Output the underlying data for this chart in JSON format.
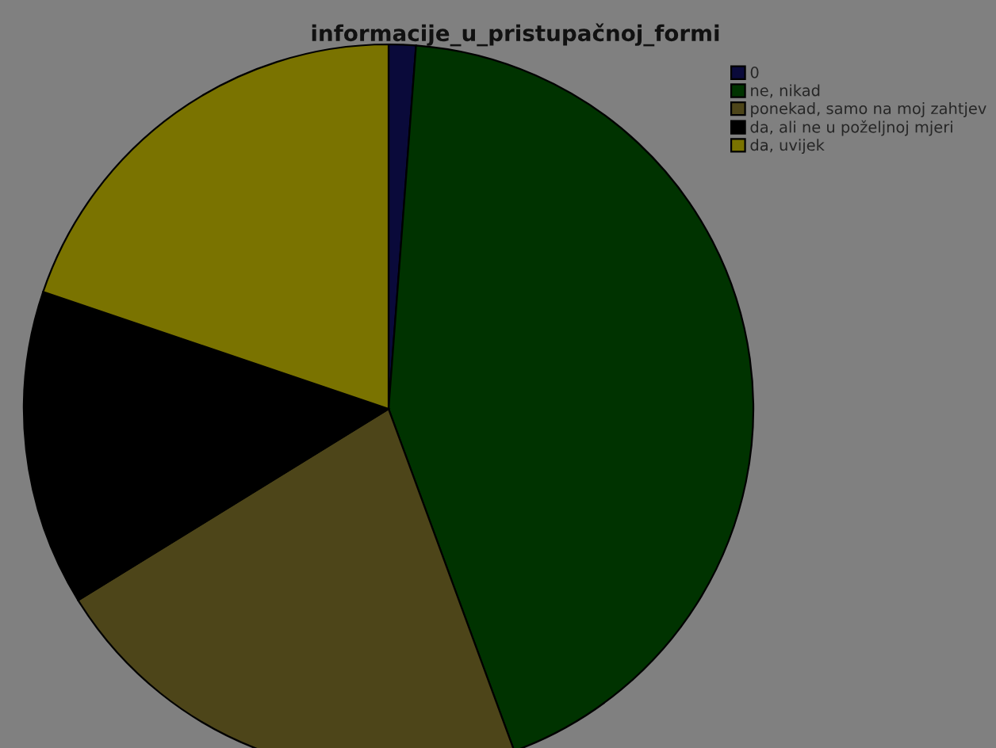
{
  "chart_data": {
    "type": "pie",
    "title": "informacije_u_pristupačnoj_formi",
    "categories": [
      "0",
      "ne, nikad",
      "ponekad, samo na moj zahtjev",
      "da, ali ne u poželjnoj mjeri",
      "da, uvijek"
    ],
    "values": [
      1.2,
      43.2,
      21.8,
      14.0,
      19.8
    ],
    "colors": [
      "#0a0a3a",
      "#003300",
      "#4d4519",
      "#000000",
      "#7a7300"
    ],
    "legend": "top right"
  }
}
